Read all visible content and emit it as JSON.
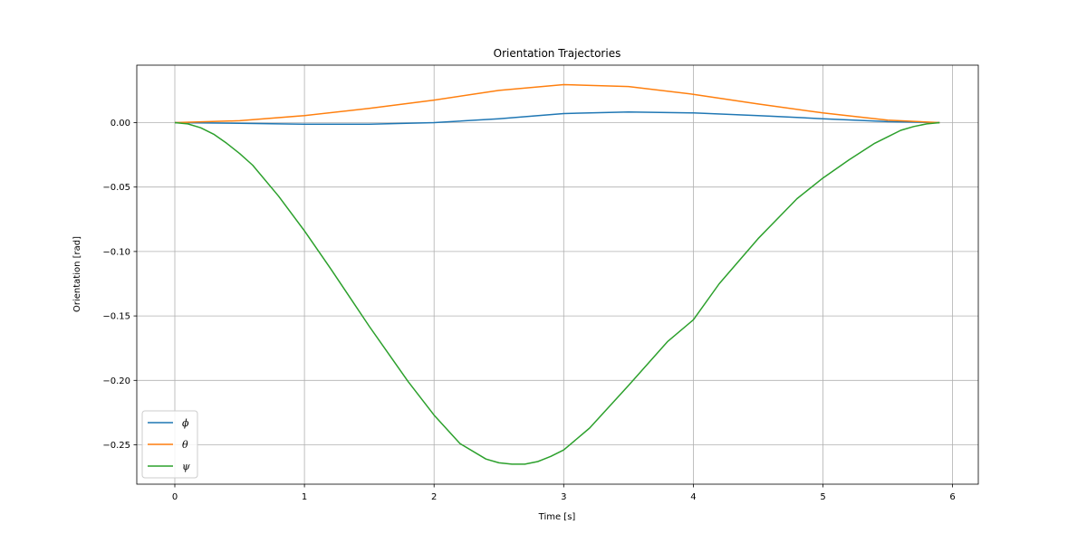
{
  "chart_data": {
    "type": "line",
    "title": "Orientation Trajectories",
    "xlabel": "Time [s]",
    "ylabel": "Orientation [rad]",
    "xlim": [
      -0.3,
      6.2
    ],
    "ylim": [
      -0.28,
      0.045
    ],
    "xticks": [
      0,
      1,
      2,
      3,
      4,
      5,
      6
    ],
    "xtick_labels": [
      "0",
      "1",
      "2",
      "3",
      "4",
      "5",
      "6"
    ],
    "yticks": [
      0.0,
      -0.05,
      -0.1,
      -0.15,
      -0.2,
      -0.25
    ],
    "ytick_labels": [
      "0.00",
      "−0.05",
      "−0.10",
      "−0.15",
      "−0.20",
      "−0.25"
    ],
    "grid": true,
    "legend_position": "lower-left",
    "series": [
      {
        "name": "ϕ",
        "color": "#1f77b4",
        "x": [
          0,
          0.5,
          1.0,
          1.5,
          2.0,
          2.5,
          3.0,
          3.5,
          4.0,
          4.5,
          5.0,
          5.5,
          5.9
        ],
        "y": [
          0,
          -0.0005,
          -0.0012,
          -0.0012,
          0.0,
          0.003,
          0.007,
          0.0083,
          0.0075,
          0.0055,
          0.003,
          0.0008,
          0
        ]
      },
      {
        "name": "θ",
        "color": "#ff7f0e",
        "x": [
          0,
          0.5,
          1.0,
          1.5,
          2.0,
          2.5,
          3.0,
          3.5,
          4.0,
          4.5,
          5.0,
          5.5,
          5.9
        ],
        "y": [
          0,
          0.0015,
          0.0055,
          0.011,
          0.0175,
          0.025,
          0.0295,
          0.028,
          0.022,
          0.0145,
          0.0075,
          0.002,
          0
        ]
      },
      {
        "name": "ψ",
        "color": "#2ca02c",
        "x": [
          0,
          0.1,
          0.2,
          0.3,
          0.4,
          0.5,
          0.6,
          0.8,
          1.0,
          1.2,
          1.5,
          1.8,
          2.0,
          2.2,
          2.4,
          2.5,
          2.6,
          2.7,
          2.8,
          2.9,
          3.0,
          3.2,
          3.5,
          3.8,
          4.0,
          4.2,
          4.5,
          4.8,
          5.0,
          5.2,
          5.4,
          5.5,
          5.6,
          5.7,
          5.8,
          5.9
        ],
        "y": [
          0,
          -0.001,
          -0.004,
          -0.009,
          -0.016,
          -0.024,
          -0.033,
          -0.057,
          -0.084,
          -0.113,
          -0.158,
          -0.201,
          -0.227,
          -0.249,
          -0.261,
          -0.264,
          -0.265,
          -0.265,
          -0.263,
          -0.259,
          -0.254,
          -0.237,
          -0.204,
          -0.17,
          -0.153,
          -0.125,
          -0.09,
          -0.059,
          -0.043,
          -0.029,
          -0.016,
          -0.011,
          -0.006,
          -0.003,
          -0.001,
          0
        ]
      }
    ]
  }
}
